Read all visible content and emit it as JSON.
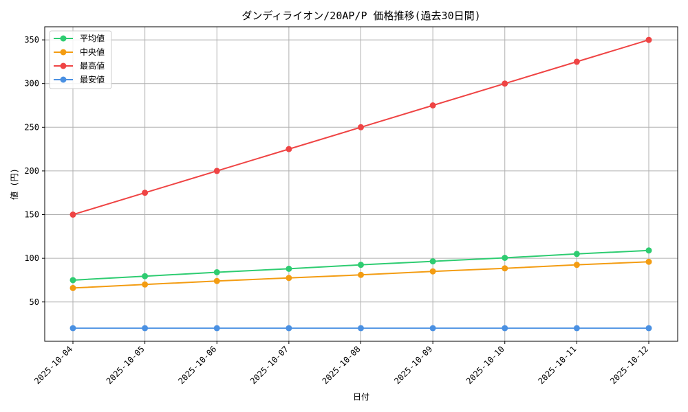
{
  "chart_data": {
    "type": "line",
    "title": "ダンディライオン/20AP/P 価格推移(過去30日間)",
    "xlabel": "日付",
    "ylabel": "値 (円)",
    "categories": [
      "2025-10-04",
      "2025-10-05",
      "2025-10-06",
      "2025-10-07",
      "2025-10-08",
      "2025-10-09",
      "2025-10-10",
      "2025-10-11",
      "2025-10-12"
    ],
    "ylim": [
      5,
      365
    ],
    "yticks": [
      50,
      100,
      150,
      200,
      250,
      300,
      350
    ],
    "grid": true,
    "legend_position": "top-left",
    "series": [
      {
        "name": "平均値",
        "color": "#2ecc71",
        "values": [
          75,
          79.5,
          84,
          88,
          92.5,
          96.5,
          100.5,
          105,
          109
        ]
      },
      {
        "name": "中央値",
        "color": "#f39c12",
        "values": [
          66,
          70,
          74,
          77.5,
          81,
          85,
          88.5,
          92.5,
          96
        ]
      },
      {
        "name": "最高値",
        "color": "#ef4444",
        "values": [
          150,
          175,
          200,
          225,
          250,
          275,
          300,
          325,
          350
        ]
      },
      {
        "name": "最安値",
        "color": "#4a90e2",
        "values": [
          20,
          20,
          20,
          20,
          20,
          20,
          20,
          20,
          20
        ]
      }
    ]
  }
}
